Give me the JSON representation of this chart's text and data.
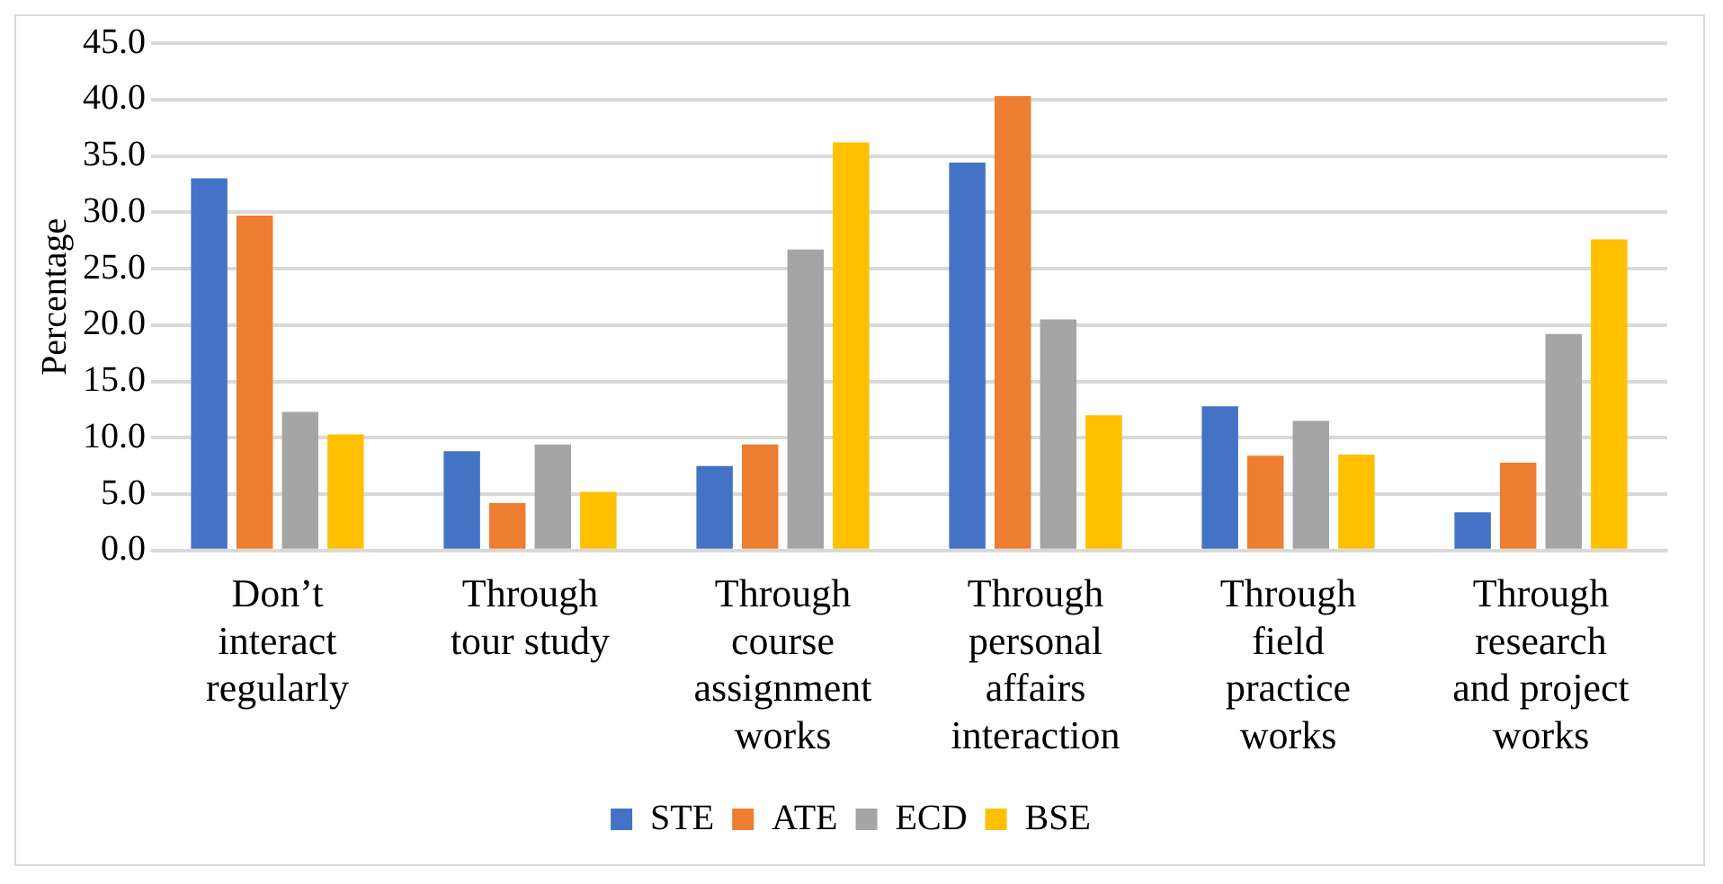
{
  "chart_data": {
    "type": "bar",
    "ylabel": "Percentage",
    "categories": [
      "Don’t interact regularly",
      "Through tour study",
      "Through course assignment works",
      "Through personal affairs interaction",
      "Through field practice works",
      "Through research and project works"
    ],
    "series": [
      {
        "name": "STE",
        "color": "#4472c4",
        "values": [
          33.0,
          8.8,
          7.5,
          34.4,
          12.8,
          3.4
        ]
      },
      {
        "name": "ATE",
        "color": "#ed7d31",
        "values": [
          29.7,
          4.2,
          9.4,
          40.3,
          8.4,
          7.8
        ]
      },
      {
        "name": "ECD",
        "color": "#a5a5a5",
        "values": [
          12.3,
          9.4,
          26.7,
          20.5,
          11.5,
          19.2
        ]
      },
      {
        "name": "BSE",
        "color": "#ffc000",
        "values": [
          10.3,
          5.2,
          36.2,
          12.0,
          8.5,
          27.6
        ]
      }
    ],
    "ylim": [
      0,
      45
    ],
    "yticks": [
      {
        "value": 0,
        "label": "0.0"
      },
      {
        "value": 5,
        "label": "5.0"
      },
      {
        "value": 10,
        "label": "10.0"
      },
      {
        "value": 15,
        "label": "15.0"
      },
      {
        "value": 20,
        "label": "20.0"
      },
      {
        "value": 25,
        "label": "25.0"
      },
      {
        "value": 30,
        "label": "30.0"
      },
      {
        "value": 35,
        "label": "35.0"
      },
      {
        "value": 40,
        "label": "40.0"
      },
      {
        "value": 45,
        "label": "45.0"
      }
    ],
    "grid": "y",
    "legend": "bottom"
  }
}
